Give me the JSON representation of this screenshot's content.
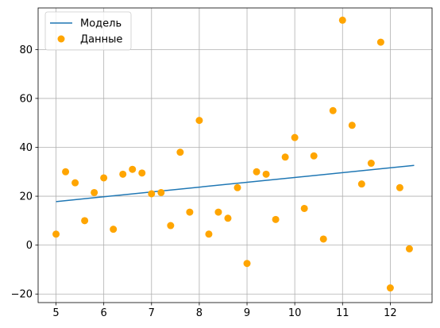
{
  "chart_data": {
    "type": "scatter",
    "title": "",
    "xlabel": "",
    "ylabel": "",
    "xlim": [
      4.625,
      12.875
    ],
    "ylim": [
      -23.5,
      97.0
    ],
    "xticks": [
      5,
      6,
      7,
      8,
      9,
      10,
      11,
      12
    ],
    "yticks": [
      -20,
      0,
      20,
      40,
      60,
      80
    ],
    "grid": true,
    "legend_position": "top-left",
    "series": [
      {
        "name": "Модель",
        "type": "line",
        "color": "#1f77b4",
        "x": [
          5.0,
          12.5
        ],
        "y": [
          17.8,
          32.6
        ]
      },
      {
        "name": "Данные",
        "type": "scatter",
        "color": "#ffa500",
        "x": [
          5.0,
          5.2,
          5.4,
          5.6,
          5.8,
          6.0,
          6.2,
          6.4,
          6.6,
          6.8,
          7.0,
          7.2,
          7.4,
          7.6,
          7.8,
          8.0,
          8.2,
          8.4,
          8.6,
          8.8,
          9.0,
          9.2,
          9.4,
          9.6,
          9.8,
          10.0,
          10.2,
          10.4,
          10.6,
          10.8,
          11.0,
          11.2,
          11.4,
          11.6,
          11.8,
          12.0,
          12.2,
          12.4
        ],
        "y": [
          4.5,
          30.0,
          25.5,
          10.0,
          21.5,
          27.5,
          6.5,
          29.0,
          31.0,
          29.5,
          21.0,
          21.5,
          8.0,
          38.0,
          13.5,
          51.0,
          4.5,
          13.5,
          11.0,
          23.5,
          -7.5,
          30.0,
          29.0,
          10.5,
          36.0,
          44.0,
          15.0,
          36.5,
          2.5,
          55.0,
          92.0,
          49.0,
          25.0,
          33.5,
          83.0,
          -17.5,
          23.5,
          -1.5
        ]
      }
    ]
  }
}
